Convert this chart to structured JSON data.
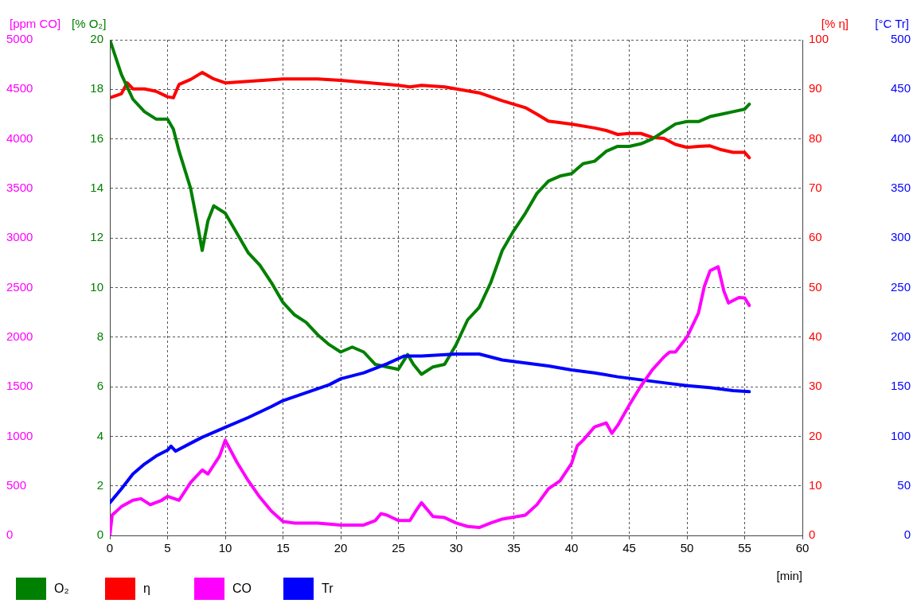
{
  "chart_data": [
    {
      "type": "line",
      "xlabel": "[min]",
      "ylabel": "[% O₂]",
      "y2label": "[% η]",
      "xlim": [
        0,
        60
      ],
      "xticks": [
        0,
        5,
        10,
        15,
        20,
        25,
        30,
        35,
        40,
        45,
        50,
        55,
        60
      ],
      "ylim": [
        0,
        20
      ],
      "yticks": [
        0,
        2,
        4,
        6,
        8,
        10,
        12,
        14,
        16,
        18,
        20
      ],
      "y2lim": [
        0,
        100
      ],
      "y2ticks": [
        0,
        10,
        20,
        30,
        40,
        50,
        60,
        70,
        80,
        90,
        100
      ],
      "grid": true,
      "legend": "bottom",
      "marker": "none",
      "line_style": "solid",
      "series": [
        {
          "name": "O₂",
          "color": "#008000",
          "x": [
            0,
            1,
            2,
            3,
            4,
            5,
            5.5,
            6,
            7,
            7.5,
            8,
            8.5,
            9,
            10,
            11,
            12,
            13,
            14,
            15,
            16,
            17,
            18,
            19,
            20,
            21,
            22,
            23,
            24,
            25,
            25.8,
            26.3,
            27,
            28,
            29,
            30,
            31,
            32,
            33,
            34,
            35,
            36,
            37,
            38,
            39,
            40,
            41,
            42,
            43,
            44,
            45,
            46,
            47,
            48,
            49,
            50,
            51,
            52,
            53,
            54,
            55,
            55.4
          ],
          "values": [
            20,
            18.6,
            17.6,
            17.1,
            16.8,
            16.8,
            16.4,
            15.5,
            14,
            12.8,
            11.5,
            12.7,
            13.3,
            13,
            12.2,
            11.4,
            10.9,
            10.2,
            9.4,
            8.9,
            8.6,
            8.1,
            7.7,
            7.4,
            7.6,
            7.4,
            6.9,
            6.8,
            6.7,
            7.3,
            6.9,
            6.5,
            6.8,
            6.9,
            7.7,
            8.7,
            9.2,
            10.2,
            11.5,
            12.3,
            13,
            13.8,
            14.3,
            14.5,
            14.6,
            15,
            15.1,
            15.5,
            15.7,
            15.7,
            15.8,
            16,
            16.3,
            16.6,
            16.7,
            16.7,
            16.9,
            17,
            17.1,
            17.2,
            17.4
          ]
        },
        {
          "name": "η",
          "color": "#ff0000",
          "axis": "y2",
          "x": [
            0,
            1,
            1.5,
            2,
            3,
            4,
            5,
            5.5,
            6,
            7,
            8,
            9,
            10,
            12,
            15,
            18,
            20,
            22,
            25,
            26,
            27,
            29,
            30,
            32,
            34,
            36,
            37,
            38,
            40,
            42,
            43,
            44,
            45,
            46,
            47,
            48,
            49,
            50,
            51,
            52,
            53,
            54,
            55,
            55.4
          ],
          "values": [
            88.3,
            89.1,
            91.3,
            90.1,
            90.1,
            89.6,
            88.5,
            88.3,
            91,
            92,
            93.4,
            92.1,
            91.3,
            91.6,
            92.1,
            92.1,
            91.8,
            91.4,
            90.8,
            90.5,
            90.8,
            90.5,
            90.1,
            89.3,
            87.7,
            86.3,
            85,
            83.6,
            83,
            82.2,
            81.7,
            80.9,
            81.1,
            81.1,
            80.3,
            80.1,
            78.9,
            78.3,
            78.5,
            78.6,
            77.8,
            77.3,
            77.3,
            76.2
          ]
        }
      ]
    },
    {
      "type": "line",
      "ylabel": "[ppm CO]",
      "y2label": "[°C Tr]",
      "xlim": [
        0,
        60
      ],
      "ylim": [
        0,
        5000
      ],
      "yticks": [
        0,
        500,
        1000,
        1500,
        2000,
        2500,
        3000,
        3500,
        4000,
        4500,
        5000
      ],
      "y2lim": [
        0,
        500
      ],
      "y2ticks": [
        0,
        50,
        100,
        150,
        200,
        250,
        300,
        350,
        400,
        450,
        500
      ],
      "tick_labels": "y",
      "legend": "bottom",
      "marker": "none",
      "line_style": "solid",
      "series": [
        {
          "name": "CO",
          "color": "#ff00ff",
          "x": [
            0,
            0.2,
            1,
            2,
            2.7,
            3.5,
            4.5,
            5,
            6,
            7,
            8,
            8.5,
            9.5,
            10,
            11,
            12,
            13,
            14,
            15,
            16,
            18,
            20,
            22,
            23,
            23.5,
            24,
            25,
            26,
            26.5,
            27,
            28,
            29,
            30,
            31,
            32,
            33,
            34,
            36,
            37,
            38,
            39,
            40,
            40.5,
            41,
            42,
            43,
            43.5,
            44,
            45,
            46,
            47,
            48,
            48.5,
            49,
            50,
            51,
            51.5,
            52,
            52.7,
            53.2,
            53.6,
            54.5,
            55,
            55.4
          ],
          "values": [
            0,
            205,
            290,
            355,
            370,
            310,
            355,
            395,
            355,
            535,
            660,
            620,
            800,
            960,
            740,
            550,
            385,
            245,
            140,
            125,
            125,
            105,
            105,
            150,
            220,
            205,
            150,
            150,
            245,
            330,
            190,
            180,
            125,
            90,
            80,
            125,
            165,
            205,
            310,
            470,
            550,
            725,
            905,
            960,
            1095,
            1135,
            1030,
            1110,
            1315,
            1505,
            1670,
            1800,
            1850,
            1850,
            2000,
            2245,
            2510,
            2670,
            2710,
            2465,
            2345,
            2400,
            2395,
            2320
          ]
        },
        {
          "name": "Tr",
          "color": "#0000ff",
          "axis": "y2",
          "x": [
            0,
            1,
            2,
            3,
            4,
            5,
            5.3,
            5.7,
            7,
            8,
            10,
            12,
            14,
            15,
            17,
            19,
            20,
            22,
            24,
            25.5,
            27,
            30,
            32,
            33,
            34,
            36,
            38,
            40,
            42,
            44,
            46,
            48,
            50,
            52,
            54,
            55.4
          ],
          "values": [
            33,
            47,
            62,
            72,
            80,
            86,
            90,
            85,
            93,
            99,
            109,
            119,
            130,
            136,
            144,
            152,
            158,
            164,
            173,
            181,
            181,
            183,
            183,
            180,
            177,
            174,
            171,
            167,
            164,
            160,
            157,
            154,
            151,
            149,
            146,
            145
          ]
        }
      ]
    }
  ]
}
